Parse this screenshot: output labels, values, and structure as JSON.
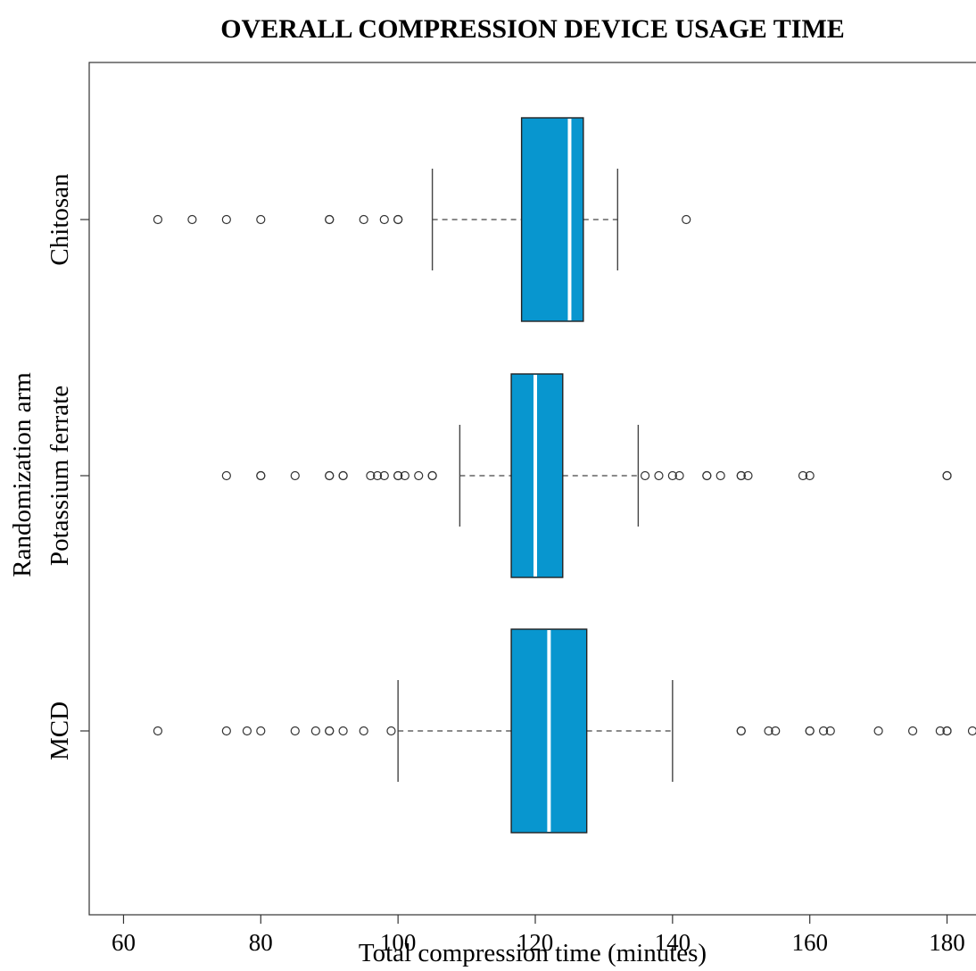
{
  "chart_data": {
    "type": "boxplot",
    "orientation": "horizontal",
    "title": "OVERALL COMPRESSION DEVICE USAGE TIME",
    "xlabel": "Total compression time (minutes)",
    "ylabel": "Randomization arm",
    "xlim": [
      55,
      185
    ],
    "xticks": [
      60,
      80,
      100,
      120,
      140,
      160,
      180
    ],
    "grid": false,
    "box_color": "#0896cf",
    "median_color": "#ffffff",
    "categories": [
      "Chitosan",
      "Potassium ferrate",
      "MCD"
    ],
    "series": [
      {
        "category": "Chitosan",
        "whisker_low": 105,
        "q1": 118,
        "median": 125,
        "q3": 127,
        "whisker_high": 132,
        "outliers": [
          65,
          70,
          75,
          80,
          90,
          90,
          95,
          98,
          100,
          100,
          142
        ]
      },
      {
        "category": "Potassium ferrate",
        "whisker_low": 109,
        "q1": 116.5,
        "median": 120,
        "q3": 124,
        "whisker_high": 135,
        "outliers": [
          75,
          80,
          80,
          85,
          90,
          90,
          92,
          92,
          96,
          97,
          98,
          100,
          100,
          101,
          103,
          105,
          105,
          136,
          138,
          140,
          141,
          145,
          145,
          147,
          150,
          150,
          151,
          159,
          160,
          180,
          180
        ]
      },
      {
        "category": "MCD",
        "whisker_low": 100,
        "q1": 116.5,
        "median": 122,
        "q3": 127.5,
        "whisker_high": 140,
        "outliers": [
          65,
          75,
          78,
          80,
          85,
          88,
          90,
          90,
          92,
          95,
          99,
          150,
          150,
          154,
          155,
          160,
          160,
          162,
          163,
          170,
          175,
          179,
          180,
          180,
          185
        ]
      }
    ]
  }
}
